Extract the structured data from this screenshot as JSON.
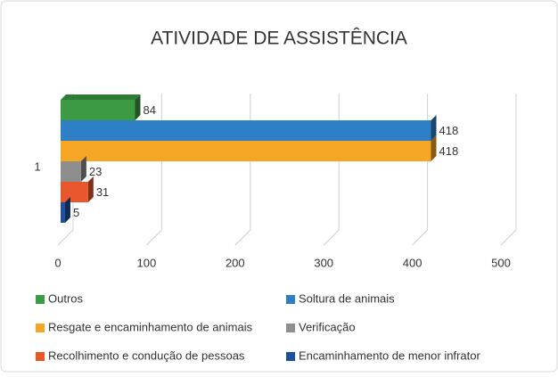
{
  "chart_data": {
    "type": "bar",
    "orientation": "horizontal",
    "title": "ATIVIDADE DE ASSISTÊNCIA",
    "categories": [
      "1"
    ],
    "series": [
      {
        "name": "Outros",
        "color": "#3c9a43",
        "values": [
          84
        ]
      },
      {
        "name": "Soltura de animais",
        "color": "#2f7fc6",
        "values": [
          418
        ]
      },
      {
        "name": "Resgate e encaminhamento de animais",
        "color": "#f6a625",
        "values": [
          418
        ]
      },
      {
        "name": "Verificação",
        "color": "#8e8e8e",
        "values": [
          23
        ]
      },
      {
        "name": "Recolhimento e condução de pessoas",
        "color": "#e8572b",
        "values": [
          31
        ]
      },
      {
        "name": "Encaminhamento de menor infrator",
        "color": "#1f4f9e",
        "values": [
          5
        ]
      }
    ],
    "xlim": [
      0,
      500
    ],
    "xticks": [
      0,
      100,
      200,
      300,
      400,
      500
    ],
    "grid": true
  }
}
